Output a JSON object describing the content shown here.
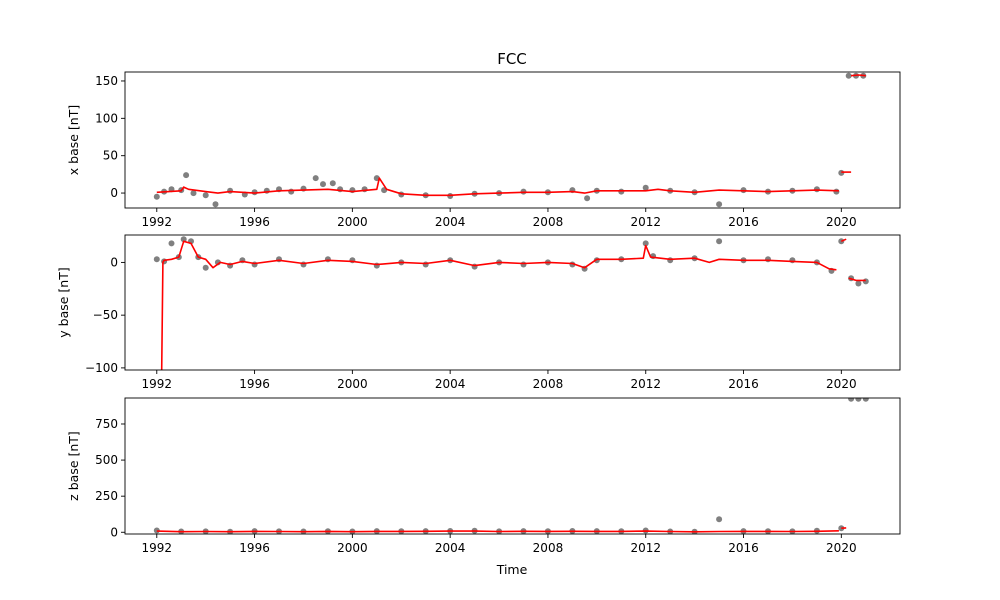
{
  "chart_data": {
    "type": "scatter",
    "title": "FCC",
    "xlabel": "Time",
    "xlim": [
      1990.7,
      2022.4
    ],
    "xticks": [
      "1992",
      "1996",
      "2000",
      "2004",
      "2008",
      "2012",
      "2016",
      "2020"
    ],
    "grid": false,
    "colors": {
      "points": "#808080",
      "line": "#ff0000"
    },
    "panels": [
      {
        "ylabel": "x base [nT]",
        "ylim": [
          -20,
          162
        ],
        "yticks": [
          0,
          50,
          100,
          150
        ],
        "series": [
          {
            "kind": "points",
            "x": [
              1992.0,
              1992.3,
              1992.6,
              1993.0,
              1993.2,
              1993.5,
              1994.0,
              1994.4,
              1995.0,
              1995.6,
              1996.0,
              1996.5,
              1997.0,
              1997.5,
              1998.0,
              1998.5,
              1998.8,
              1999.2,
              1999.5,
              2000.0,
              2000.5,
              2001.0,
              2001.3,
              2002.0,
              2003.0,
              2004.0,
              2005.0,
              2006.0,
              2007.0,
              2008.0,
              2009.0,
              2009.6,
              2010.0,
              2011.0,
              2012.0,
              2013.0,
              2014.0,
              2015.0,
              2016.0,
              2017.0,
              2018.0,
              2019.0,
              2019.8,
              2020.0,
              2020.3,
              2020.6,
              2020.9
            ],
            "y": [
              -5,
              2,
              5,
              4,
              24,
              0,
              -3,
              -15,
              3,
              -2,
              1,
              3,
              5,
              2,
              6,
              20,
              12,
              13,
              5,
              4,
              5,
              20,
              4,
              -2,
              -3,
              -4,
              -1,
              0,
              2,
              1,
              4,
              -7,
              3,
              2,
              7,
              3,
              1,
              -15,
              4,
              2,
              3,
              5,
              2,
              27,
              157,
              157,
              157
            ]
          },
          {
            "kind": "line",
            "x": [
              1992.0,
              1992.5,
              1993.0,
              1993.1,
              1993.3,
              1994.0,
              1994.5,
              1995.0,
              1996.0,
              1997.0,
              1998.0,
              1999.0,
              2000.0,
              2001.0,
              2001.1,
              2001.4,
              2002.0,
              2003.0,
              2004.0,
              2005.0,
              2006.0,
              2007.0,
              2008.0,
              2009.0,
              2009.5,
              2010.0,
              2011.0,
              2012.0,
              2012.5,
              2013.0,
              2014.0,
              2015.0,
              2016.0,
              2017.0,
              2018.0,
              2019.0,
              2019.9
            ],
            "y": [
              1,
              2,
              3,
              8,
              5,
              2,
              0,
              2,
              0,
              3,
              4,
              5,
              2,
              5,
              20,
              5,
              -1,
              -3,
              -3,
              -1,
              0,
              1,
              1,
              2,
              0,
              3,
              3,
              3,
              5,
              3,
              1,
              4,
              3,
              2,
              3,
              4,
              3
            ]
          },
          {
            "kind": "line",
            "x": [
              2020.0,
              2020.2,
              2020.4
            ],
            "y": [
              28,
              28,
              28
            ]
          },
          {
            "kind": "line",
            "x": [
              2020.4,
              2020.7,
              2021.0
            ],
            "y": [
              157,
              158,
              157
            ]
          }
        ]
      },
      {
        "ylabel": "y base [nT]",
        "ylim": [
          -102,
          26
        ],
        "yticks": [
          -100,
          -50,
          0
        ],
        "series": [
          {
            "kind": "points",
            "x": [
              1992.0,
              1992.3,
              1992.6,
              1992.9,
              1993.1,
              1993.4,
              1993.7,
              1994.0,
              1994.5,
              1995.0,
              1995.5,
              1996.0,
              1997.0,
              1998.0,
              1999.0,
              2000.0,
              2001.0,
              2002.0,
              2003.0,
              2004.0,
              2005.0,
              2006.0,
              2007.0,
              2008.0,
              2009.0,
              2009.5,
              2010.0,
              2011.0,
              2012.0,
              2012.3,
              2013.0,
              2014.0,
              2015.0,
              2016.0,
              2017.0,
              2018.0,
              2019.0,
              2019.6,
              2020.0,
              2020.4,
              2020.7,
              2021.0
            ],
            "y": [
              3,
              1,
              18,
              5,
              22,
              20,
              5,
              -5,
              0,
              -3,
              2,
              -2,
              3,
              -2,
              3,
              2,
              -3,
              0,
              -2,
              2,
              -4,
              0,
              -2,
              0,
              -2,
              -6,
              2,
              3,
              18,
              6,
              2,
              4,
              20,
              2,
              3,
              2,
              0,
              -8,
              20,
              -15,
              -20,
              -18
            ]
          },
          {
            "kind": "line",
            "x": [
              1992.2,
              1992.25,
              1992.3,
              1992.6,
              1992.9,
              1993.1,
              1993.4,
              1993.7,
              1994.0,
              1994.3,
              1994.6,
              1995.0,
              1995.5,
              1996.0,
              1997.0,
              1998.0,
              1999.0,
              2000.0,
              2001.0,
              2002.0,
              2003.0,
              2004.0,
              2005.0,
              2006.0,
              2007.0,
              2008.0,
              2009.0,
              2009.5,
              2010.0,
              2011.0,
              2011.9,
              2012.0,
              2012.2,
              2013.0,
              2014.0,
              2014.6,
              2015.0,
              2016.0,
              2017.0,
              2018.0,
              2019.0,
              2019.5,
              2019.8
            ],
            "y": [
              -102,
              0,
              2,
              3,
              5,
              20,
              18,
              5,
              3,
              -5,
              0,
              -2,
              1,
              -1,
              2,
              -1,
              2,
              1,
              -2,
              0,
              -1,
              2,
              -3,
              0,
              -1,
              0,
              -1,
              -5,
              3,
              3,
              4,
              16,
              5,
              3,
              4,
              0,
              3,
              2,
              2,
              1,
              0,
              -6,
              -7
            ]
          },
          {
            "kind": "line",
            "x": [
              2020.0,
              2020.2
            ],
            "y": [
              20,
              22
            ]
          },
          {
            "kind": "line",
            "x": [
              2020.3,
              2020.6,
              2021.0
            ],
            "y": [
              -15,
              -17,
              -17
            ]
          }
        ]
      },
      {
        "ylabel": "z base [nT]",
        "ylim": [
          -12,
          930
        ],
        "yticks": [
          0,
          250,
          500,
          750
        ],
        "series": [
          {
            "kind": "points",
            "x": [
              1992.0,
              1993.0,
              1994.0,
              1995.0,
              1996.0,
              1997.0,
              1998.0,
              1999.0,
              2000.0,
              2001.0,
              2002.0,
              2003.0,
              2004.0,
              2005.0,
              2006.0,
              2007.0,
              2008.0,
              2009.0,
              2010.0,
              2011.0,
              2012.0,
              2013.0,
              2014.0,
              2015.0,
              2016.0,
              2017.0,
              2018.0,
              2019.0,
              2020.0,
              2020.4,
              2020.7,
              2021.0
            ],
            "y": [
              12,
              5,
              6,
              4,
              8,
              6,
              5,
              7,
              5,
              8,
              7,
              8,
              9,
              10,
              6,
              8,
              7,
              9,
              8,
              7,
              12,
              5,
              3,
              90,
              8,
              7,
              6,
              10,
              28,
              925,
              925,
              925
            ]
          },
          {
            "kind": "line",
            "x": [
              1992.0,
              1993.0,
              1994.0,
              1995.0,
              1996.0,
              1997.0,
              1998.0,
              1999.0,
              2000.0,
              2001.0,
              2002.0,
              2003.0,
              2004.0,
              2005.0,
              2006.0,
              2007.0,
              2008.0,
              2009.0,
              2010.0,
              2011.0,
              2012.0,
              2013.0,
              2014.0,
              2015.0,
              2016.0,
              2017.0,
              2018.0,
              2019.0,
              2019.9
            ],
            "y": [
              8,
              4,
              5,
              4,
              6,
              5,
              4,
              6,
              4,
              6,
              6,
              7,
              8,
              8,
              5,
              7,
              6,
              7,
              6,
              6,
              8,
              5,
              3,
              5,
              6,
              6,
              5,
              7,
              10
            ]
          },
          {
            "kind": "line",
            "x": [
              2020.0,
              2020.2
            ],
            "y": [
              28,
              30
            ]
          }
        ]
      }
    ]
  }
}
